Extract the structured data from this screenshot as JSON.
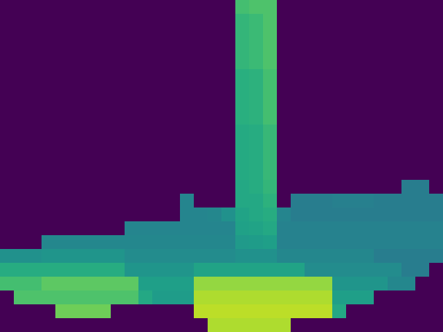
{
  "chart_data": {
    "type": "heatmap",
    "color": "Viridis",
    "color_range": [
      0,
      1
    ],
    "tick_labels": false,
    "xlim": [
      -0.5,
      31.5
    ],
    "ylim": [
      23.5,
      -0.5
    ],
    "cells": [
      [
        null,
        null,
        null,
        null,
        null,
        null,
        null,
        null,
        null,
        null,
        null,
        null,
        null,
        null,
        null,
        null,
        null,
        0.7,
        0.72,
        0.72,
        null,
        null,
        null,
        null,
        null,
        null,
        null,
        null,
        null,
        null,
        null,
        null
      ],
      [
        null,
        null,
        null,
        null,
        null,
        null,
        null,
        null,
        null,
        null,
        null,
        null,
        null,
        null,
        null,
        null,
        null,
        0.66,
        0.68,
        0.72,
        null,
        null,
        null,
        null,
        null,
        null,
        null,
        null,
        null,
        null,
        null,
        null
      ],
      [
        null,
        null,
        null,
        null,
        null,
        null,
        null,
        null,
        null,
        null,
        null,
        null,
        null,
        null,
        null,
        null,
        null,
        0.66,
        0.68,
        0.72,
        null,
        null,
        null,
        null,
        null,
        null,
        null,
        null,
        null,
        null,
        null,
        null
      ],
      [
        null,
        null,
        null,
        null,
        null,
        null,
        null,
        null,
        null,
        null,
        null,
        null,
        null,
        null,
        null,
        null,
        null,
        0.66,
        0.68,
        0.72,
        null,
        null,
        null,
        null,
        null,
        null,
        null,
        null,
        null,
        null,
        null,
        null
      ],
      [
        null,
        null,
        null,
        null,
        null,
        null,
        null,
        null,
        null,
        null,
        null,
        null,
        null,
        null,
        null,
        null,
        null,
        0.66,
        0.68,
        0.72,
        null,
        null,
        null,
        null,
        null,
        null,
        null,
        null,
        null,
        null,
        null,
        null
      ],
      [
        null,
        null,
        null,
        null,
        null,
        null,
        null,
        null,
        null,
        null,
        null,
        null,
        null,
        null,
        null,
        null,
        null,
        0.63,
        0.64,
        0.7,
        null,
        null,
        null,
        null,
        null,
        null,
        null,
        null,
        null,
        null,
        null,
        null
      ],
      [
        null,
        null,
        null,
        null,
        null,
        null,
        null,
        null,
        null,
        null,
        null,
        null,
        null,
        null,
        null,
        null,
        null,
        0.63,
        0.64,
        0.7,
        null,
        null,
        null,
        null,
        null,
        null,
        null,
        null,
        null,
        null,
        null,
        null
      ],
      [
        null,
        null,
        null,
        null,
        null,
        null,
        null,
        null,
        null,
        null,
        null,
        null,
        null,
        null,
        null,
        null,
        null,
        0.63,
        0.64,
        0.7,
        null,
        null,
        null,
        null,
        null,
        null,
        null,
        null,
        null,
        null,
        null,
        null
      ],
      [
        null,
        null,
        null,
        null,
        null,
        null,
        null,
        null,
        null,
        null,
        null,
        null,
        null,
        null,
        null,
        null,
        null,
        0.63,
        0.64,
        0.7,
        null,
        null,
        null,
        null,
        null,
        null,
        null,
        null,
        null,
        null,
        null,
        null
      ],
      [
        null,
        null,
        null,
        null,
        null,
        null,
        null,
        null,
        null,
        null,
        null,
        null,
        null,
        null,
        null,
        null,
        null,
        0.61,
        0.62,
        0.67,
        null,
        null,
        null,
        null,
        null,
        null,
        null,
        null,
        null,
        null,
        null,
        null
      ],
      [
        null,
        null,
        null,
        null,
        null,
        null,
        null,
        null,
        null,
        null,
        null,
        null,
        null,
        null,
        null,
        null,
        null,
        0.61,
        0.62,
        0.67,
        null,
        null,
        null,
        null,
        null,
        null,
        null,
        null,
        null,
        null,
        null,
        null
      ],
      [
        null,
        null,
        null,
        null,
        null,
        null,
        null,
        null,
        null,
        null,
        null,
        null,
        null,
        null,
        null,
        null,
        null,
        0.61,
        0.62,
        0.67,
        null,
        null,
        null,
        null,
        null,
        null,
        null,
        null,
        null,
        null,
        null,
        null
      ],
      [
        null,
        null,
        null,
        null,
        null,
        null,
        null,
        null,
        null,
        null,
        null,
        null,
        null,
        null,
        null,
        null,
        null,
        0.61,
        0.62,
        0.67,
        null,
        null,
        null,
        null,
        null,
        null,
        null,
        null,
        null,
        null,
        null,
        null
      ],
      [
        null,
        null,
        null,
        null,
        null,
        null,
        null,
        null,
        null,
        null,
        null,
        null,
        null,
        null,
        null,
        null,
        null,
        0.6,
        0.62,
        0.66,
        null,
        null,
        null,
        null,
        null,
        null,
        null,
        null,
        null,
        0.42,
        0.42,
        null
      ],
      [
        null,
        null,
        null,
        null,
        null,
        null,
        null,
        null,
        null,
        null,
        null,
        null,
        null,
        0.45,
        null,
        null,
        null,
        0.6,
        0.6,
        0.64,
        null,
        0.42,
        0.42,
        0.42,
        0.43,
        0.43,
        0.43,
        0.42,
        0.42,
        0.42,
        0.42,
        0.42
      ],
      [
        null,
        null,
        null,
        null,
        null,
        null,
        null,
        null,
        null,
        null,
        null,
        null,
        null,
        0.45,
        0.45,
        0.46,
        0.5,
        0.58,
        0.6,
        0.62,
        0.45,
        0.42,
        0.42,
        0.42,
        0.42,
        0.42,
        0.42,
        0.42,
        0.42,
        0.42,
        0.42,
        0.42
      ],
      [
        null,
        null,
        null,
        null,
        null,
        null,
        null,
        null,
        null,
        0.45,
        0.45,
        0.45,
        0.45,
        0.45,
        0.45,
        0.45,
        0.45,
        0.57,
        0.58,
        0.6,
        0.44,
        0.44,
        0.44,
        0.44,
        0.44,
        0.44,
        0.44,
        0.44,
        0.44,
        0.44,
        0.44,
        0.44
      ],
      [
        null,
        null,
        null,
        0.46,
        0.46,
        0.46,
        0.46,
        0.46,
        0.46,
        0.46,
        0.46,
        0.46,
        0.46,
        0.46,
        0.46,
        0.46,
        0.46,
        0.54,
        0.55,
        0.56,
        0.44,
        0.44,
        0.44,
        0.44,
        0.44,
        0.44,
        0.44,
        0.44,
        0.44,
        0.44,
        0.44,
        0.44
      ],
      [
        0.5,
        0.5,
        0.5,
        0.52,
        0.52,
        0.52,
        0.52,
        0.52,
        0.52,
        0.48,
        0.48,
        0.48,
        0.48,
        0.48,
        0.48,
        0.48,
        0.48,
        0.5,
        0.5,
        0.5,
        0.46,
        0.46,
        0.46,
        0.46,
        0.46,
        0.46,
        0.46,
        0.42,
        0.42,
        0.42,
        0.42,
        0.42
      ],
      [
        0.62,
        0.62,
        0.62,
        0.62,
        0.62,
        0.62,
        0.62,
        0.62,
        0.62,
        0.52,
        0.52,
        0.52,
        0.52,
        0.52,
        0.58,
        0.58,
        0.58,
        0.58,
        0.58,
        0.58,
        0.58,
        0.58,
        0.48,
        0.48,
        0.48,
        0.48,
        0.48,
        0.48,
        0.48,
        0.42,
        0.42,
        null
      ],
      [
        0.7,
        0.7,
        0.7,
        0.75,
        0.75,
        0.75,
        0.75,
        0.75,
        0.75,
        0.75,
        0.56,
        0.56,
        0.56,
        0.56,
        0.84,
        0.84,
        0.84,
        0.84,
        0.84,
        0.84,
        0.84,
        0.84,
        0.84,
        0.84,
        0.52,
        0.52,
        0.52,
        0.52,
        0.46,
        0.46,
        null,
        null
      ],
      [
        null,
        0.72,
        0.72,
        0.72,
        0.72,
        0.72,
        0.72,
        0.72,
        0.72,
        0.72,
        0.6,
        0.55,
        0.55,
        0.55,
        0.88,
        0.88,
        0.88,
        0.88,
        0.88,
        0.88,
        0.88,
        0.88,
        0.88,
        0.88,
        0.56,
        0.56,
        0.56,
        null,
        null,
        null,
        null,
        null
      ],
      [
        null,
        null,
        null,
        null,
        0.78,
        0.78,
        0.78,
        0.78,
        null,
        null,
        null,
        null,
        null,
        null,
        0.9,
        0.9,
        0.9,
        0.9,
        0.9,
        0.9,
        0.9,
        0.9,
        0.9,
        0.9,
        0.6,
        null,
        null,
        null,
        null,
        null,
        null,
        null
      ],
      [
        null,
        null,
        null,
        null,
        null,
        null,
        null,
        null,
        null,
        null,
        null,
        null,
        null,
        null,
        null,
        0.88,
        0.88,
        0.88,
        0.88,
        0.88,
        0.88,
        null,
        null,
        null,
        null,
        null,
        null,
        null,
        null,
        null,
        null,
        null
      ]
    ]
  }
}
